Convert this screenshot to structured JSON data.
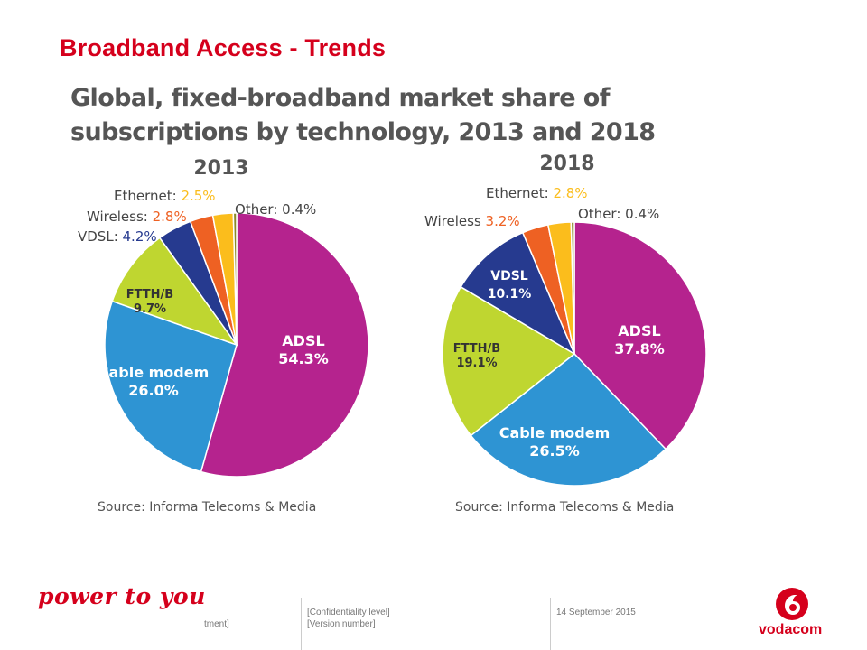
{
  "slide": {
    "title": "Broadband Access - Trends"
  },
  "chart_heading": "Global, fixed-broadband market share of subscriptions by technology, 2013 and 2018",
  "chart_data": [
    {
      "type": "pie",
      "title": "2013",
      "unit": "%",
      "slices": [
        {
          "label": "ADSL",
          "value": 54.3,
          "display": "54.3%"
        },
        {
          "label": "Cable modem",
          "value": 26.0,
          "display": "26.0%"
        },
        {
          "label": "FTTH/B",
          "value": 9.7,
          "display": "9.7%"
        },
        {
          "label": "VDSL",
          "value": 4.2,
          "display": "4.2%"
        },
        {
          "label": "Wireless",
          "value": 2.8,
          "display": "2.8%"
        },
        {
          "label": "Ethernet",
          "value": 2.5,
          "display": "2.5%"
        },
        {
          "label": "Other",
          "value": 0.4,
          "display": "0.4%"
        }
      ],
      "source": "Source: Informa Telecoms & Media"
    },
    {
      "type": "pie",
      "title": "2018",
      "unit": "%",
      "slices": [
        {
          "label": "ADSL",
          "value": 37.8,
          "display": "37.8%"
        },
        {
          "label": "Cable modem",
          "value": 26.5,
          "display": "26.5%"
        },
        {
          "label": "FTTH/B",
          "value": 19.1,
          "display": "19.1%"
        },
        {
          "label": "VDSL",
          "value": 10.1,
          "display": "10.1%"
        },
        {
          "label": "Wireless",
          "value": 3.2,
          "display": "3.2%"
        },
        {
          "label": "Ethernet",
          "value": 2.8,
          "display": "2.8%"
        },
        {
          "label": "Other",
          "value": 0.4,
          "display": "0.4%"
        }
      ],
      "source": "Source: Informa Telecoms & Media"
    }
  ],
  "colors": {
    "ADSL": "#b5238e",
    "Cable modem": "#2e94d3",
    "FTTH/B": "#bfd630",
    "VDSL": "#263a8f",
    "Wireless": "#ee6123",
    "Ethernet": "#fbbd1c",
    "Other": "#8a8a2a",
    "title": "#d5001c",
    "heading": "#555555"
  },
  "footer": {
    "tagline": "power to you",
    "department": "tment]",
    "confidentiality": "[Confidentiality level]",
    "version": "[Version number]",
    "date": "14 September 2015",
    "logo_text": "vodacom",
    "logo_icon": "vodafone-speechmark-icon"
  }
}
